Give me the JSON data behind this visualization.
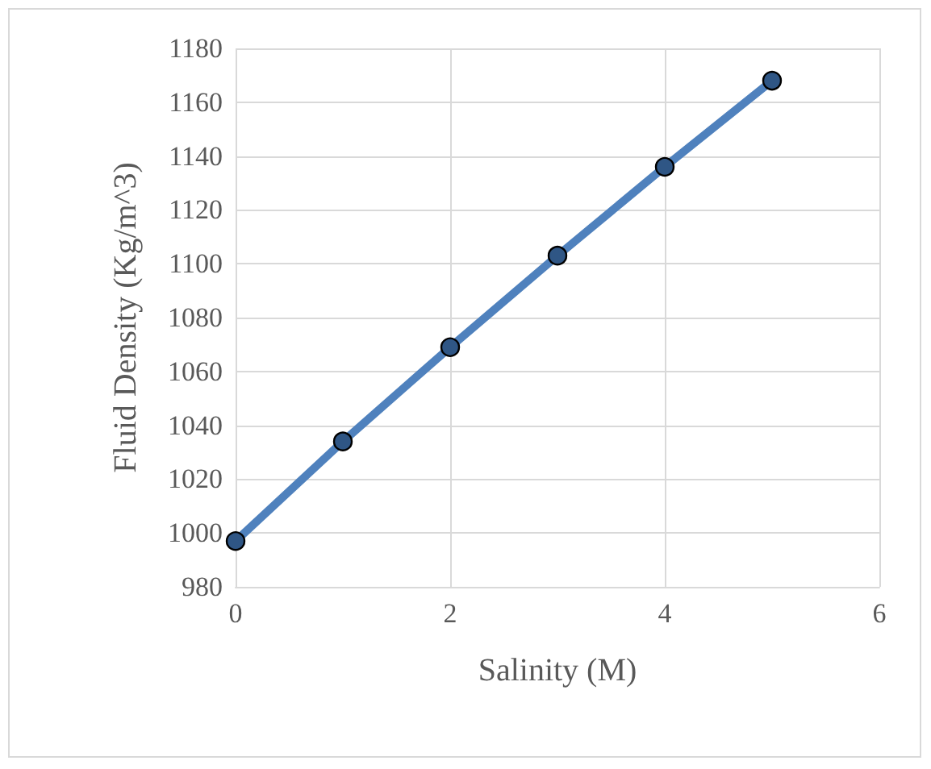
{
  "chart_data": {
    "type": "line",
    "xlabel": "Salinity (M)",
    "ylabel": "Fluid Density (Kg/m^3)",
    "x": [
      0,
      1,
      2,
      3,
      4,
      5
    ],
    "series": [
      {
        "color": "#4f81bd",
        "values": [
          997,
          1034,
          1069,
          1103,
          1136,
          1168
        ]
      }
    ],
    "xlim": [
      0,
      6
    ],
    "xticks": [
      0,
      2,
      4,
      6
    ],
    "ylim": [
      980,
      1180
    ],
    "yticks": [
      980,
      1000,
      1020,
      1040,
      1060,
      1080,
      1100,
      1120,
      1140,
      1160,
      1180
    ],
    "grid": true,
    "marker": "circle",
    "line_style": "solid"
  }
}
